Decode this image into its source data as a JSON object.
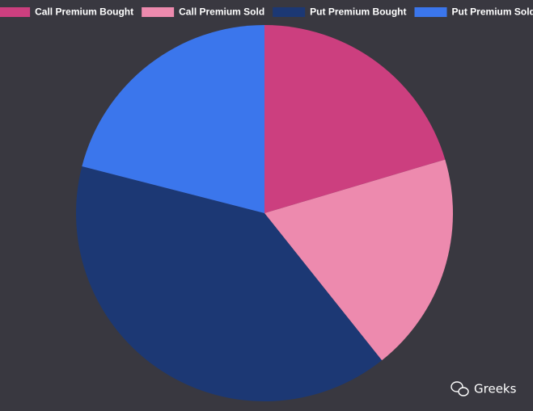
{
  "chart_data": {
    "type": "pie",
    "series": [
      {
        "name": "Call Premium Bought",
        "color": "#cc3f7f",
        "values": [
          20.4
        ]
      },
      {
        "name": "Call Premium Sold",
        "color": "#ed8aae",
        "values": [
          18.9
        ]
      },
      {
        "name": "Put Premium Bought",
        "color": "#1c3874",
        "values": [
          39.7
        ]
      },
      {
        "name": "Put Premium Sold",
        "color": "#3b76ec",
        "values": [
          21.0
        ]
      }
    ],
    "legend": "top"
  },
  "watermark": "Greeks"
}
